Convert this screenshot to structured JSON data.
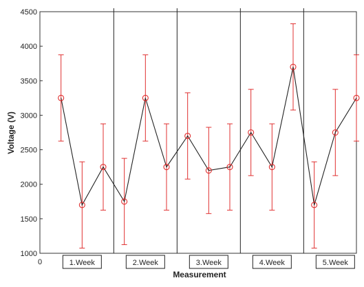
{
  "chart_data": {
    "type": "line",
    "title": "",
    "xlabel": "Measurement",
    "ylabel": "Voltage (V)",
    "xlim": [
      0,
      15
    ],
    "ylim": [
      1000,
      4500
    ],
    "x_origin_label": "0",
    "y_ticks": [
      1000,
      1500,
      2000,
      2500,
      3000,
      3500,
      4000,
      4500
    ],
    "grid": false,
    "legend": "none",
    "line_color": "#222222",
    "marker_color": "#e03030",
    "errorbar_color": "#e03030",
    "series": [
      {
        "x": [
          1,
          2,
          3,
          4,
          5,
          6,
          7,
          8,
          9,
          10,
          11,
          12,
          13,
          14,
          15
        ],
        "values": [
          3250,
          1700,
          2250,
          1750,
          3250,
          2250,
          2700,
          2200,
          2250,
          2750,
          2250,
          3700,
          1700,
          2750,
          3250
        ],
        "err_low": [
          2625,
          1075,
          1625,
          1125,
          2625,
          1625,
          2075,
          1575,
          1625,
          2125,
          1625,
          3075,
          1075,
          2125,
          2625
        ],
        "err_high": [
          3875,
          2325,
          2875,
          2375,
          3875,
          2875,
          3325,
          2825,
          2875,
          3375,
          2875,
          4325,
          2325,
          3375,
          3875
        ]
      }
    ],
    "separators_x": [
      3.5,
      6.5,
      9.5,
      12.5
    ],
    "groups": [
      {
        "label": "1.Week",
        "center": 2
      },
      {
        "label": "2.Week",
        "center": 5
      },
      {
        "label": "3.Week",
        "center": 8
      },
      {
        "label": "4.Week",
        "center": 11
      },
      {
        "label": "5.Week",
        "center": 14
      }
    ]
  }
}
